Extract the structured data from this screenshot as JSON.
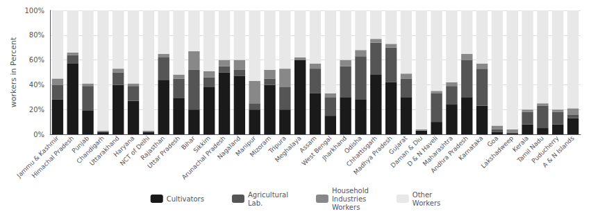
{
  "chart_data": {
    "type": "bar",
    "stacked": true,
    "categories": [
      "Jammu & Kashmir",
      "Himachal Pradesh",
      "Punjab",
      "Chandigarh",
      "Uttarakhand",
      "Haryana",
      "NCT of Delhi",
      "Rajasthan",
      "Uttar Pradesh",
      "Bihar",
      "Sikkim",
      "Arunachal Pradesh",
      "Nagaland",
      "Manipur",
      "Mizoram",
      "Tripura",
      "Meghalaya",
      "Assam",
      "West Bengal",
      "Jharkhand",
      "Odisha",
      "Chhattisgarh",
      "Madhya Pradesh",
      "Gujarat",
      "Daman & Diu",
      "D & N Haveli",
      "Maharashtra",
      "Andhra Pradesh",
      "Karnataka",
      "Goa",
      "Lakshadweep",
      "Kerala",
      "Tamil Nadu",
      "Puducherry",
      "A & N Islands"
    ],
    "series": [
      {
        "name": "Cultivators",
        "color": "#1a1a1a",
        "values": [
          28,
          57,
          19,
          2,
          40,
          27,
          2,
          44,
          29,
          20,
          38,
          50,
          47,
          20,
          40,
          20,
          60,
          33,
          15,
          30,
          28,
          48,
          42,
          30,
          3,
          10,
          24,
          30,
          23,
          2,
          1,
          8,
          5,
          8,
          13
        ]
      },
      {
        "name": "Agricultural\nLab.",
        "color": "#555555",
        "values": [
          12,
          7,
          20,
          0,
          10,
          12,
          0,
          18,
          16,
          32,
          8,
          5,
          5,
          5,
          5,
          18,
          0,
          20,
          15,
          25,
          35,
          26,
          28,
          15,
          0,
          23,
          15,
          30,
          30,
          2,
          0,
          10,
          18,
          10,
          3
        ]
      },
      {
        "name": "Household\nIndustries\nWorkers",
        "color": "#888888",
        "values": [
          5,
          2,
          2,
          1,
          3,
          2,
          1,
          3,
          3,
          15,
          5,
          5,
          8,
          18,
          7,
          15,
          2,
          4,
          3,
          5,
          5,
          3,
          3,
          4,
          1,
          2,
          3,
          5,
          4,
          3,
          3,
          2,
          2,
          2,
          5
        ]
      },
      {
        "name": "Other\nWorkers",
        "color": "#e8e8e8",
        "values": [
          55,
          34,
          59,
          97,
          47,
          59,
          97,
          35,
          52,
          33,
          49,
          40,
          40,
          57,
          48,
          47,
          38,
          43,
          67,
          40,
          32,
          23,
          27,
          51,
          96,
          65,
          58,
          35,
          43,
          93,
          96,
          80,
          75,
          80,
          79
        ]
      }
    ],
    "ylabel": "workers in Percent",
    "ylim": [
      0,
      100
    ],
    "yticks": [
      {
        "value": 0,
        "label": "0%"
      },
      {
        "value": 20,
        "label": "20%"
      },
      {
        "value": 40,
        "label": "40%"
      },
      {
        "value": 60,
        "label": "60%"
      },
      {
        "value": 80,
        "label": "80%"
      },
      {
        "value": 100,
        "label": "100%"
      }
    ],
    "grid": true,
    "legend": "bottom"
  }
}
